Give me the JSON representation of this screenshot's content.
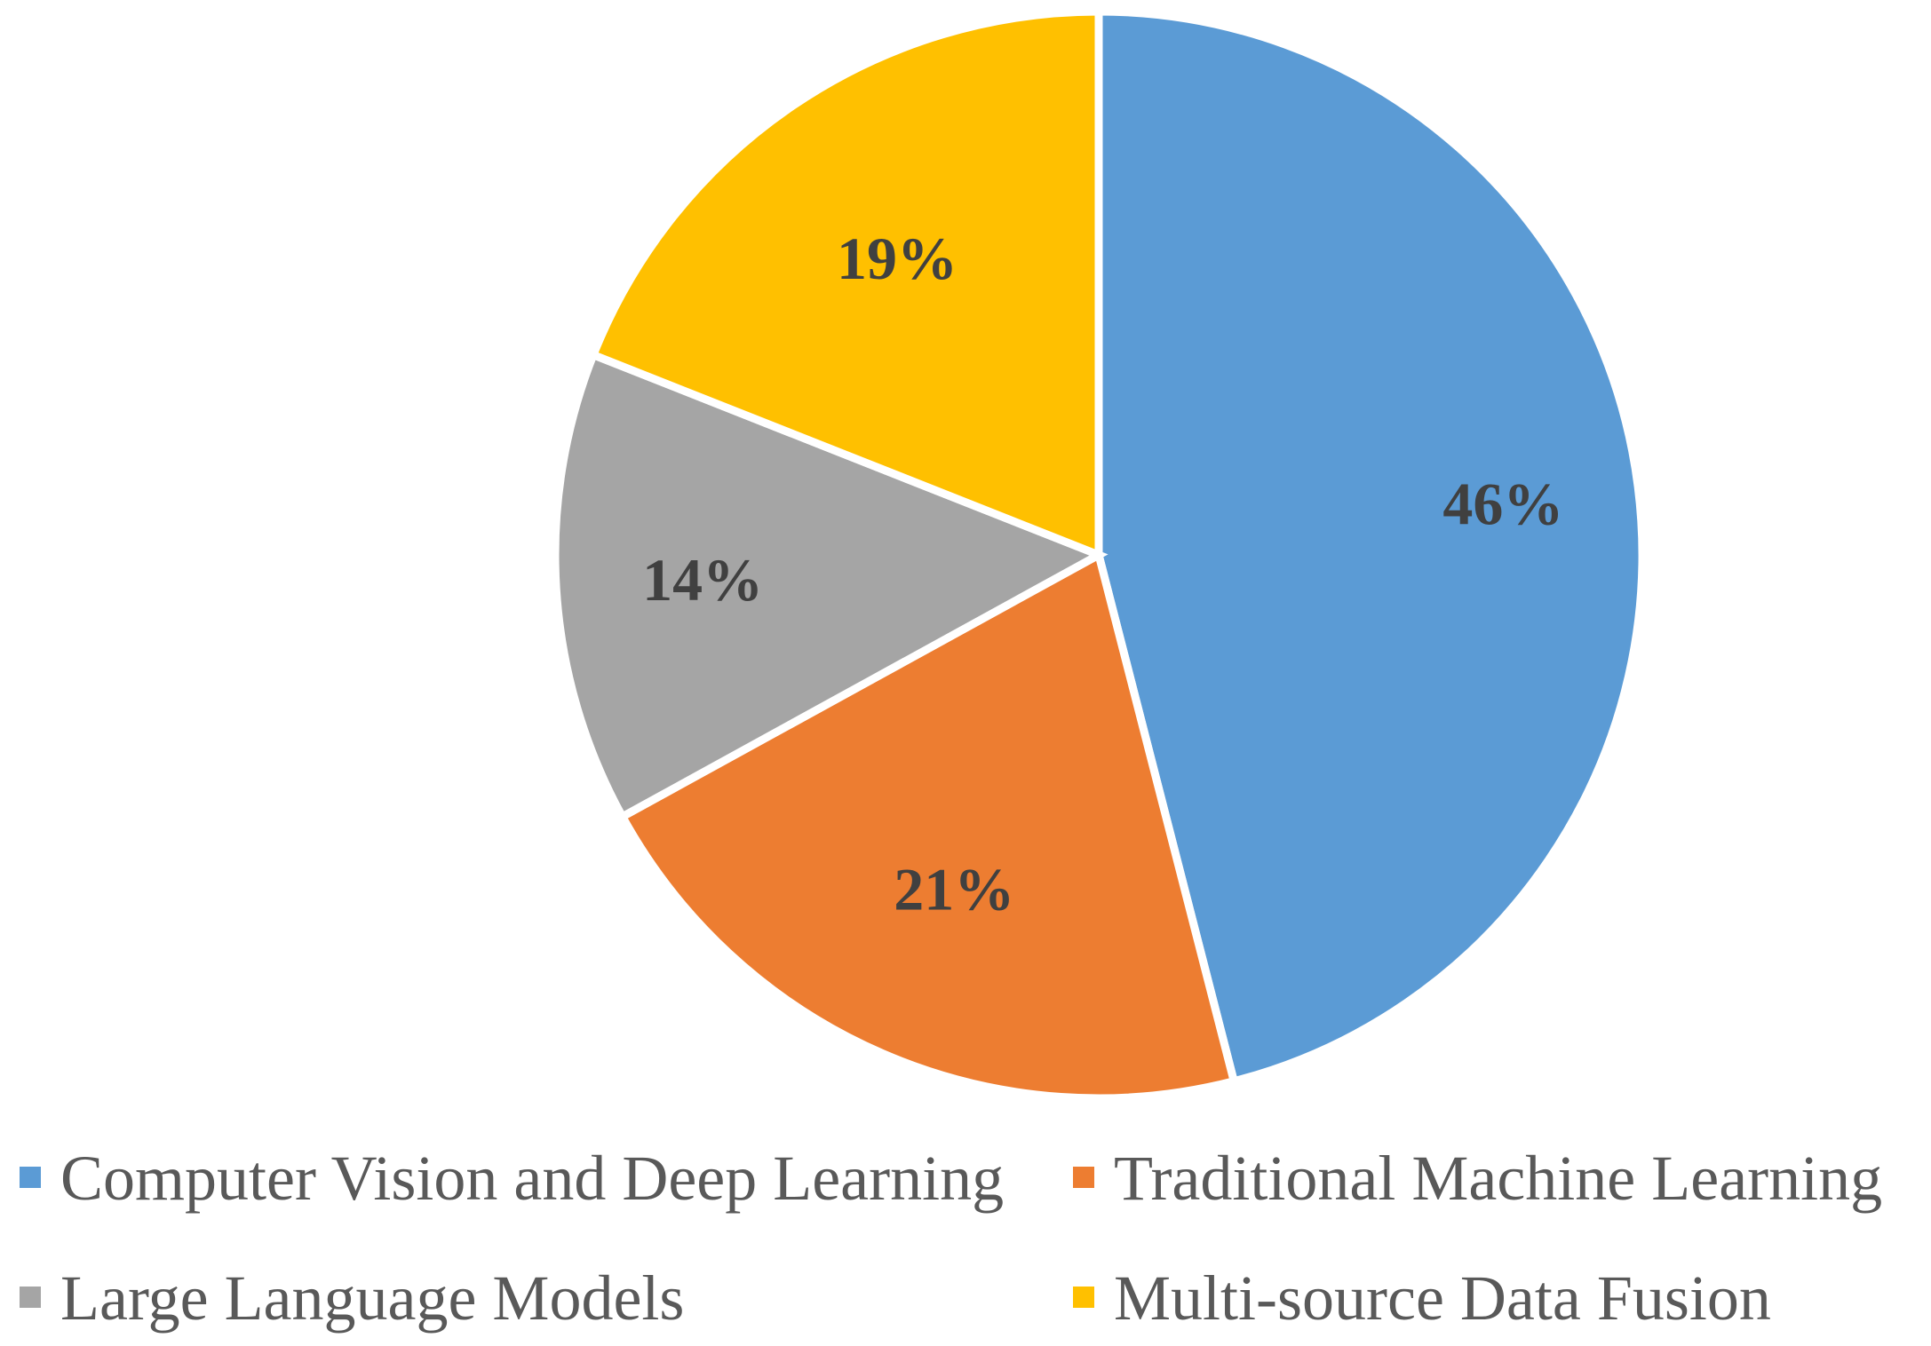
{
  "chart_data": {
    "type": "pie",
    "title": "",
    "categories": [
      "Computer Vision and Deep Learning",
      "Traditional Machine Learning",
      "Large Language Models",
      "Multi-source Data Fusion"
    ],
    "values": [
      46,
      21,
      14,
      19
    ],
    "data_labels": [
      "46%",
      "21%",
      "14%",
      "19%"
    ],
    "colors": [
      "#5b9bd5",
      "#ed7d31",
      "#a5a5a5",
      "#ffc000"
    ],
    "start_angle": "12 o'clock",
    "direction": "clockwise",
    "legend": {
      "placement": "bottom",
      "entries": [
        "Computer Vision and Deep Learning",
        "Traditional Machine Learning",
        "Large Language Models",
        "Multi-source Data Fusion"
      ]
    }
  }
}
